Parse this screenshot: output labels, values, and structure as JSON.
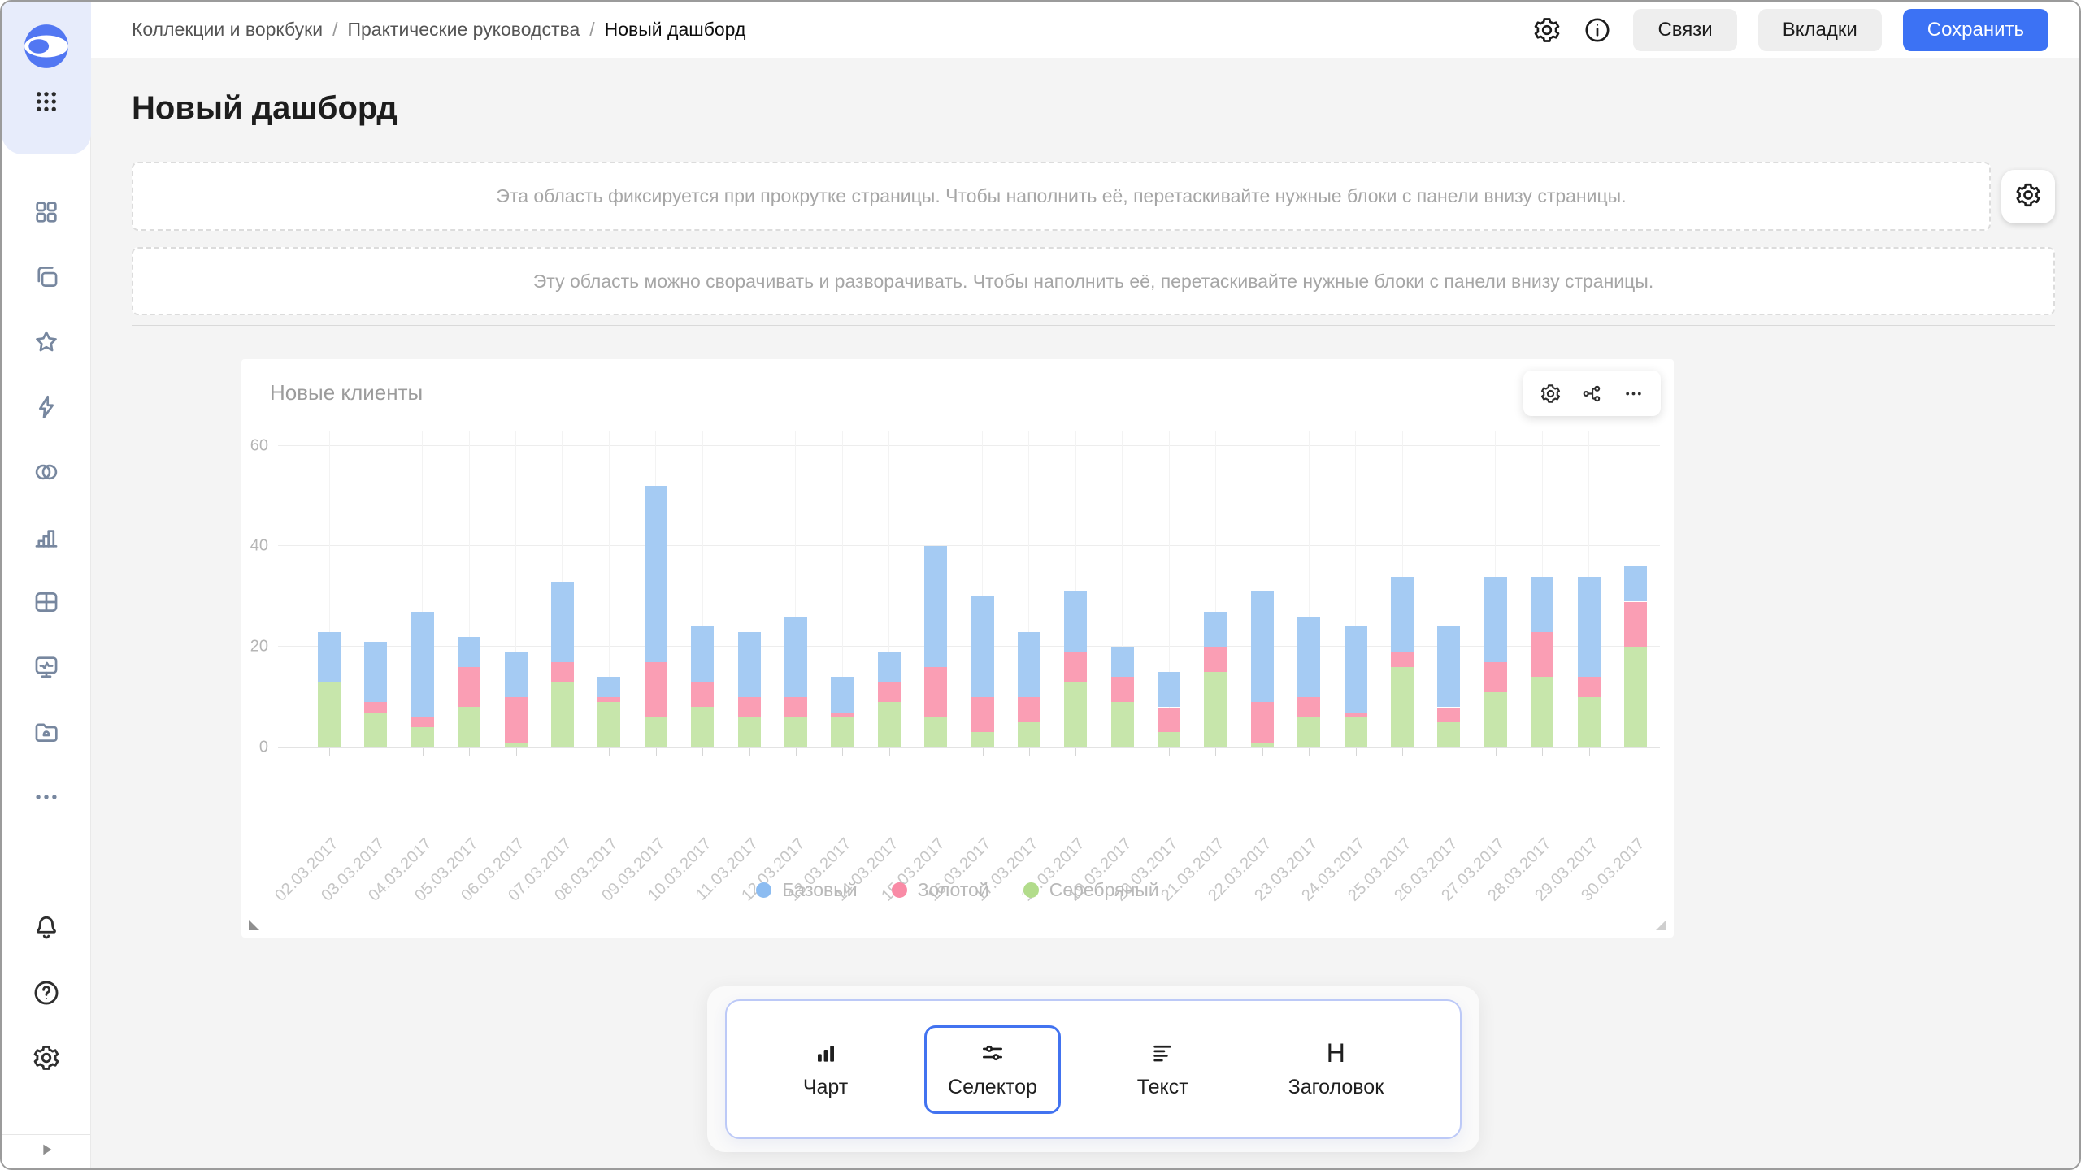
{
  "header": {
    "breadcrumb": [
      {
        "label": "Коллекции и воркбуки"
      },
      {
        "label": "Практические руководства"
      },
      {
        "label": "Новый дашборд"
      }
    ],
    "separator": "/",
    "action_icons": [
      "settings-icon",
      "info-icon"
    ],
    "actions": {
      "links_label": "Связи",
      "tabs_label": "Вкладки",
      "save_label": "Сохранить"
    },
    "save_color": "#3c72f4"
  },
  "sidebar": {
    "top_icons": [
      "datalens-logo",
      "apps-grid-icon"
    ],
    "nav_icons": [
      "tiles-icon",
      "workbooks-icon",
      "star-icon",
      "lightning-icon",
      "circles-icon",
      "bar-chart-icon",
      "table-icon",
      "monitor-icon",
      "folder-icon",
      "more-icon"
    ],
    "bottom_icons": [
      "bell-icon",
      "help-icon",
      "settings-icon"
    ],
    "footer_icon": "expand-icon"
  },
  "page": {
    "title": "Новый дашборд"
  },
  "placeholders": {
    "fixed": "Эта область фиксируется при прокрутке страницы. Чтобы наполнить её, перетаскивайте нужные блоки с панели внизу страницы.",
    "collapsible": "Эту область можно сворачивать и разворачивать. Чтобы наполнить её, перетаскивайте нужные блоки с панели внизу страницы."
  },
  "widget": {
    "title": "Новые клиенты",
    "toolbar_icons": [
      "settings-icon",
      "links-icon",
      "more-icon"
    ]
  },
  "chart_data": {
    "type": "bar",
    "stacked": true,
    "title": "Новые клиенты",
    "xlabel": "",
    "ylabel": "",
    "yticks": [
      0,
      20,
      40,
      60
    ],
    "ylim": [
      0,
      63
    ],
    "grid": true,
    "legend_position": "bottom",
    "categories": [
      "02.03.2017",
      "03.03.2017",
      "04.03.2017",
      "05.03.2017",
      "06.03.2017",
      "07.03.2017",
      "08.03.2017",
      "09.03.2017",
      "10.03.2017",
      "11.03.2017",
      "12.03.2017",
      "13.03.2017",
      "14.03.2017",
      "15.03.2017",
      "16.03.2017",
      "17.03.2017",
      "18.03.2017",
      "19.03.2017",
      "20.03.2017",
      "21.03.2017",
      "22.03.2017",
      "23.03.2017",
      "24.03.2017",
      "25.03.2017",
      "26.03.2017",
      "27.03.2017",
      "28.03.2017",
      "29.03.2017",
      "30.03.2017"
    ],
    "series": [
      {
        "name": "Базовый",
        "color": "#a5cbf3",
        "legend_color": "#8cbcf1",
        "values": [
          10,
          12,
          21,
          6,
          9,
          16,
          4,
          35,
          11,
          13,
          16,
          7,
          6,
          24,
          20,
          13,
          12,
          6,
          7,
          7,
          22,
          16,
          17,
          15,
          16,
          17,
          11,
          20,
          7
        ]
      },
      {
        "name": "Золотой",
        "color": "#fa9eb4",
        "legend_color": "#f98ba6",
        "values": [
          0,
          2,
          2,
          8,
          9,
          4,
          1,
          11,
          5,
          4,
          4,
          1,
          4,
          10,
          7,
          5,
          6,
          5,
          5,
          5,
          8,
          4,
          1,
          3,
          3,
          6,
          9,
          4,
          9
        ]
      },
      {
        "name": "Серебряный",
        "color": "#c7e6ab",
        "legend_color": "#b2dc8b",
        "values": [
          13,
          7,
          4,
          8,
          1,
          13,
          9,
          6,
          8,
          6,
          6,
          6,
          9,
          6,
          3,
          5,
          13,
          9,
          3,
          15,
          1,
          6,
          6,
          16,
          5,
          11,
          14,
          10,
          20
        ]
      }
    ],
    "stack_order_bottom_to_top": [
      "Серебряный",
      "Золотой",
      "Базовый"
    ]
  },
  "panel": {
    "items": [
      {
        "label": "Чарт",
        "icon": "chart-icon",
        "selected": false
      },
      {
        "label": "Селектор",
        "icon": "selector-icon",
        "selected": true
      },
      {
        "label": "Текст",
        "icon": "text-icon",
        "selected": false
      },
      {
        "label": "Заголовок",
        "icon": "heading-icon",
        "selected": false
      }
    ],
    "selected_border_color": "#4273f0"
  }
}
